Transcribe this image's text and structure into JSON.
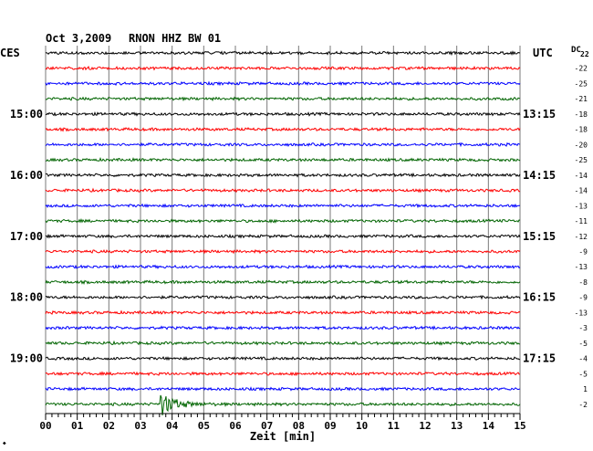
{
  "header": {
    "date": "Oct 3,2009",
    "station": "RNON HHZ BW 01",
    "left_zone": "CES",
    "right_zone": "UTC",
    "dc_label": "DC",
    "dc_sub": "22"
  },
  "chart_data": {
    "type": "line",
    "title": "Oct 3,2009   RNON HHZ BW 01",
    "xlabel": "Zeit [min]",
    "xlim": [
      0,
      15
    ],
    "x_ticks": [
      "00",
      "01",
      "02",
      "03",
      "04",
      "05",
      "06",
      "07",
      "08",
      "09",
      "10",
      "11",
      "12",
      "13",
      "14",
      "15"
    ],
    "row_count": 24,
    "row_colors": [
      "#000000",
      "#ff0000",
      "#0000ff",
      "#006400"
    ],
    "left_hour_labels": [
      {
        "row": 4,
        "text": "15:00"
      },
      {
        "row": 8,
        "text": "16:00"
      },
      {
        "row": 12,
        "text": "17:00"
      },
      {
        "row": 16,
        "text": "18:00"
      },
      {
        "row": 20,
        "text": "19:00"
      }
    ],
    "right_hour_labels": [
      {
        "row": 4,
        "text": "13:15"
      },
      {
        "row": 8,
        "text": "14:15"
      },
      {
        "row": 12,
        "text": "15:15"
      },
      {
        "row": 16,
        "text": "16:15"
      },
      {
        "row": 20,
        "text": "17:15"
      }
    ],
    "dc_offsets": [
      "-22",
      "-25",
      "-21",
      "-18",
      "-18",
      "-20",
      "-25",
      "-14",
      "-14",
      "-13",
      "-11",
      "-12",
      "-9",
      "-13",
      "-8",
      "-9",
      "-13",
      "-3",
      "-5",
      "-4",
      "-5",
      "1",
      "-2"
    ],
    "events": [
      {
        "row": 23,
        "minute": 3.6,
        "amplitude": 3.5,
        "decay_minutes": 1.4
      }
    ]
  },
  "footer_mark": "◆"
}
